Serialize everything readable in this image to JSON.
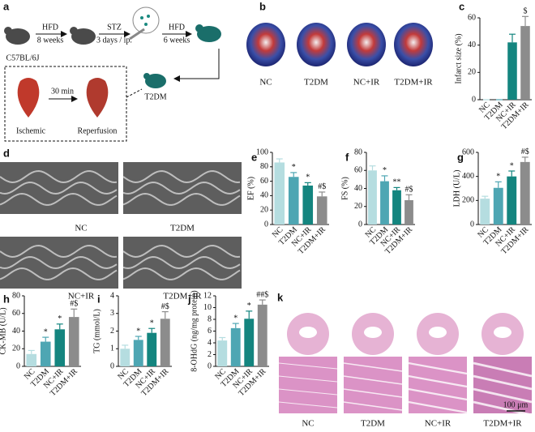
{
  "schematic": {
    "label": "a",
    "strain": "C57BL/6J",
    "step1": {
      "name": "HFD",
      "duration": "8 weeks"
    },
    "step2": {
      "name": "STZ",
      "duration": "3 days / ip."
    },
    "step3": {
      "name": "HFD",
      "duration": "6 weeks"
    },
    "ischemia_time": "30 min",
    "ischemic": "Ischemic",
    "reperfusion": "Reperfusion",
    "model": "T2DM"
  },
  "heart_images": {
    "label": "b",
    "groups": [
      "NC",
      "T2DM",
      "NC+IR",
      "T2DM+IR"
    ]
  },
  "echo": {
    "label": "d",
    "groups": [
      "NC",
      "T2DM",
      "NC+IR",
      "T2DM+IR"
    ]
  },
  "histology": {
    "label": "k",
    "groups": [
      "NC",
      "T2DM",
      "NC+IR",
      "T2DM+IR"
    ],
    "scale_bar": "100 μm"
  },
  "chart_data": [
    {
      "type": "bar",
      "panel_label": "c",
      "y_label": "Infarct size (%)",
      "categories": [
        "NC",
        "T2DM",
        "NC+IR",
        "T2DM+IR"
      ],
      "values": [
        0,
        0,
        42,
        54
      ],
      "errors": [
        0,
        0,
        6,
        7
      ],
      "annotations": [
        null,
        null,
        null,
        "$"
      ],
      "colors": [
        "#b5dde0",
        "#4ea6b3",
        "#14857f",
        "#8c8c8c"
      ],
      "ylim": [
        0,
        60
      ],
      "yticks": [
        0,
        20,
        40,
        60
      ]
    },
    {
      "type": "bar",
      "panel_label": "e",
      "y_label": "EF (%)",
      "categories": [
        "NC",
        "T2DM",
        "NC+IR",
        "T2DM+IR"
      ],
      "values": [
        86,
        66,
        54,
        39
      ],
      "errors": [
        5,
        6,
        4,
        6
      ],
      "annotations": [
        null,
        "*",
        "*",
        "#$"
      ],
      "colors": [
        "#b5dde0",
        "#4ea6b3",
        "#14857f",
        "#8c8c8c"
      ],
      "ylim": [
        0,
        100
      ],
      "yticks": [
        0,
        20,
        40,
        60,
        80,
        100
      ]
    },
    {
      "type": "bar",
      "panel_label": "f",
      "y_label": "FS (%)",
      "categories": [
        "NC",
        "T2DM",
        "NC+IR",
        "T2DM+IR"
      ],
      "values": [
        60,
        48,
        38,
        27
      ],
      "errors": [
        5,
        6,
        3,
        6
      ],
      "annotations": [
        null,
        "*",
        "**",
        "#$"
      ],
      "colors": [
        "#b5dde0",
        "#4ea6b3",
        "#14857f",
        "#8c8c8c"
      ],
      "ylim": [
        0,
        80
      ],
      "yticks": [
        0,
        20,
        40,
        60,
        80
      ]
    },
    {
      "type": "bar",
      "panel_label": "g",
      "y_label": "LDH (U/L)",
      "categories": [
        "NC",
        "T2DM",
        "NC+IR",
        "T2DM+IR"
      ],
      "values": [
        215,
        305,
        400,
        520
      ],
      "errors": [
        20,
        50,
        45,
        40
      ],
      "annotations": [
        null,
        "*",
        "*",
        "#$"
      ],
      "colors": [
        "#b5dde0",
        "#4ea6b3",
        "#14857f",
        "#8c8c8c"
      ],
      "ylim": [
        0,
        600
      ],
      "yticks": [
        0,
        200,
        400,
        600
      ]
    },
    {
      "type": "bar",
      "panel_label": "h",
      "y_label": "CK-MB (U/L)",
      "categories": [
        "NC",
        "T2DM",
        "NC+IR",
        "T2DM+IR"
      ],
      "values": [
        14,
        28,
        42,
        56
      ],
      "errors": [
        4,
        5,
        6,
        9
      ],
      "annotations": [
        null,
        "*",
        "*",
        "#$"
      ],
      "colors": [
        "#b5dde0",
        "#4ea6b3",
        "#14857f",
        "#8c8c8c"
      ],
      "ylim": [
        0,
        80
      ],
      "yticks": [
        0,
        20,
        40,
        60,
        80
      ]
    },
    {
      "type": "bar",
      "panel_label": "i",
      "y_label": "TG (mmol/L)",
      "categories": [
        "NC",
        "T2DM",
        "NC+IR",
        "T2DM+IR"
      ],
      "values": [
        1.0,
        1.5,
        1.9,
        2.7
      ],
      "errors": [
        0.2,
        0.2,
        0.25,
        0.4
      ],
      "annotations": [
        null,
        "*",
        "*",
        "#$"
      ],
      "colors": [
        "#b5dde0",
        "#4ea6b3",
        "#14857f",
        "#8c8c8c"
      ],
      "ylim": [
        0,
        4
      ],
      "yticks": [
        0,
        1,
        2,
        3,
        4
      ]
    },
    {
      "type": "bar",
      "panel_label": "j",
      "y_label": "8-OHdG (ng/mg protein)",
      "categories": [
        "NC",
        "T2DM",
        "NC+IR",
        "T2DM+IR"
      ],
      "values": [
        4.4,
        6.5,
        8.1,
        10.5
      ],
      "errors": [
        0.5,
        0.8,
        1.3,
        0.8
      ],
      "annotations": [
        null,
        "*",
        "*",
        "##$"
      ],
      "colors": [
        "#b5dde0",
        "#4ea6b3",
        "#14857f",
        "#8c8c8c"
      ],
      "ylim": [
        0,
        12
      ],
      "yticks": [
        0,
        2,
        4,
        6,
        8,
        10,
        12
      ]
    }
  ]
}
